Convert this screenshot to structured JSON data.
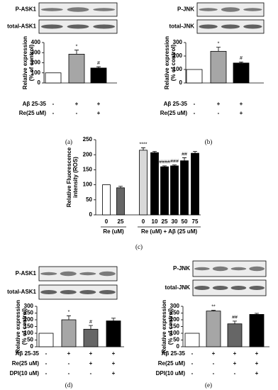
{
  "chart_data": [
    {
      "type": "bar",
      "label": "(a)",
      "blots": [
        "P-ASK1",
        "total-ASK1"
      ],
      "ylabel": [
        "Relative expression",
        "(% of control)"
      ],
      "values": [
        100,
        285,
        148
      ],
      "errors": [
        null,
        40,
        12
      ],
      "annotations": [
        null,
        "*",
        "#"
      ],
      "colors": [
        "#ffffff",
        "#a6a6a6",
        "#000000"
      ],
      "ylim": [
        0,
        400
      ],
      "yticks": [
        0,
        100,
        200,
        300,
        400
      ],
      "conditions": [
        {
          "name": "Aβ 25-35",
          "signs": [
            "-",
            "+",
            "+"
          ]
        },
        {
          "name": "Re(25 uM)",
          "signs": [
            "-",
            "-",
            "+"
          ]
        }
      ]
    },
    {
      "type": "bar",
      "label": "(b)",
      "blots": [
        "P-JNK",
        "total-JNK"
      ],
      "ylabel": [
        "Relative expression",
        "(% of control)"
      ],
      "values": [
        100,
        235,
        148
      ],
      "errors": [
        null,
        30,
        8
      ],
      "annotations": [
        null,
        "*",
        "#"
      ],
      "colors": [
        "#ffffff",
        "#a6a6a6",
        "#000000"
      ],
      "ylim": [
        0,
        300
      ],
      "yticks": [
        0,
        100,
        200,
        300
      ],
      "conditions": [
        {
          "name": "Aβ 25-35",
          "signs": [
            "-",
            "+",
            "+"
          ]
        },
        {
          "name": "Re(25 uM)",
          "signs": [
            "-",
            "-",
            "+"
          ]
        }
      ]
    },
    {
      "type": "bar",
      "label": "(c)",
      "ylabel": [
        "Relative Fluorescence",
        "intensity (ROS)"
      ],
      "categories": [
        "0",
        "25",
        "0",
        "10",
        "25",
        "30",
        "50",
        "75"
      ],
      "group_labels": [
        "Re (uM)",
        "Re (uM) + Aβ (25 uM)"
      ],
      "values": [
        100,
        90,
        215,
        207,
        160,
        163,
        180,
        205
      ],
      "errors": [
        null,
        5,
        8,
        4,
        3,
        3,
        10,
        6
      ],
      "annotations": [
        null,
        null,
        "****",
        null,
        "####",
        "###",
        "##",
        null
      ],
      "colors": [
        "#ffffff",
        "#666666",
        "#d9d9d9",
        "#000000",
        "#000000",
        "#000000",
        "#000000",
        "#000000"
      ],
      "ylim": [
        0,
        250
      ],
      "yticks": [
        0,
        50,
        100,
        150,
        200,
        250
      ]
    },
    {
      "type": "bar",
      "label": "(d)",
      "blots": [
        "P-ASK1",
        "total-ASK1"
      ],
      "ylabel": [
        "Relative expression",
        "(% of control)"
      ],
      "values": [
        100,
        200,
        130,
        192
      ],
      "errors": [
        null,
        30,
        28,
        20
      ],
      "annotations": [
        null,
        "*",
        "#",
        null
      ],
      "colors": [
        "#ffffff",
        "#a6a6a6",
        "#666666",
        "#000000"
      ],
      "ylim": [
        0,
        300
      ],
      "yticks": [
        0,
        50,
        100,
        150,
        200,
        250,
        300
      ],
      "conditions": [
        {
          "name": "Aβ 25-35",
          "signs": [
            "-",
            "+",
            "+",
            "+"
          ]
        },
        {
          "name": "Re(25 uM)",
          "signs": [
            "-",
            "-",
            "+",
            "+"
          ]
        },
        {
          "name": "DPI(10 uM)",
          "signs": [
            "-",
            "-",
            "-",
            "+"
          ]
        }
      ]
    },
    {
      "type": "bar",
      "label": "(e)",
      "blots": [
        "P-JNK",
        "total-JNK"
      ],
      "ylabel": [
        "Relative expression",
        "(% of control)"
      ],
      "values": [
        100,
        265,
        170,
        240
      ],
      "errors": [
        null,
        5,
        20,
        8
      ],
      "annotations": [
        null,
        "**",
        "##",
        null
      ],
      "colors": [
        "#ffffff",
        "#a6a6a6",
        "#666666",
        "#000000"
      ],
      "ylim": [
        0,
        300
      ],
      "yticks": [
        0,
        50,
        100,
        150,
        200,
        250,
        300
      ],
      "conditions": [
        {
          "name": "Aβ 25-35",
          "signs": [
            "-",
            "+",
            "+",
            "+"
          ]
        },
        {
          "name": "Re(25 uM)",
          "signs": [
            "-",
            "-",
            "+",
            "+"
          ]
        },
        {
          "name": "DPI(10 uM)",
          "signs": [
            "-",
            "-",
            "-",
            "+"
          ]
        }
      ]
    }
  ]
}
